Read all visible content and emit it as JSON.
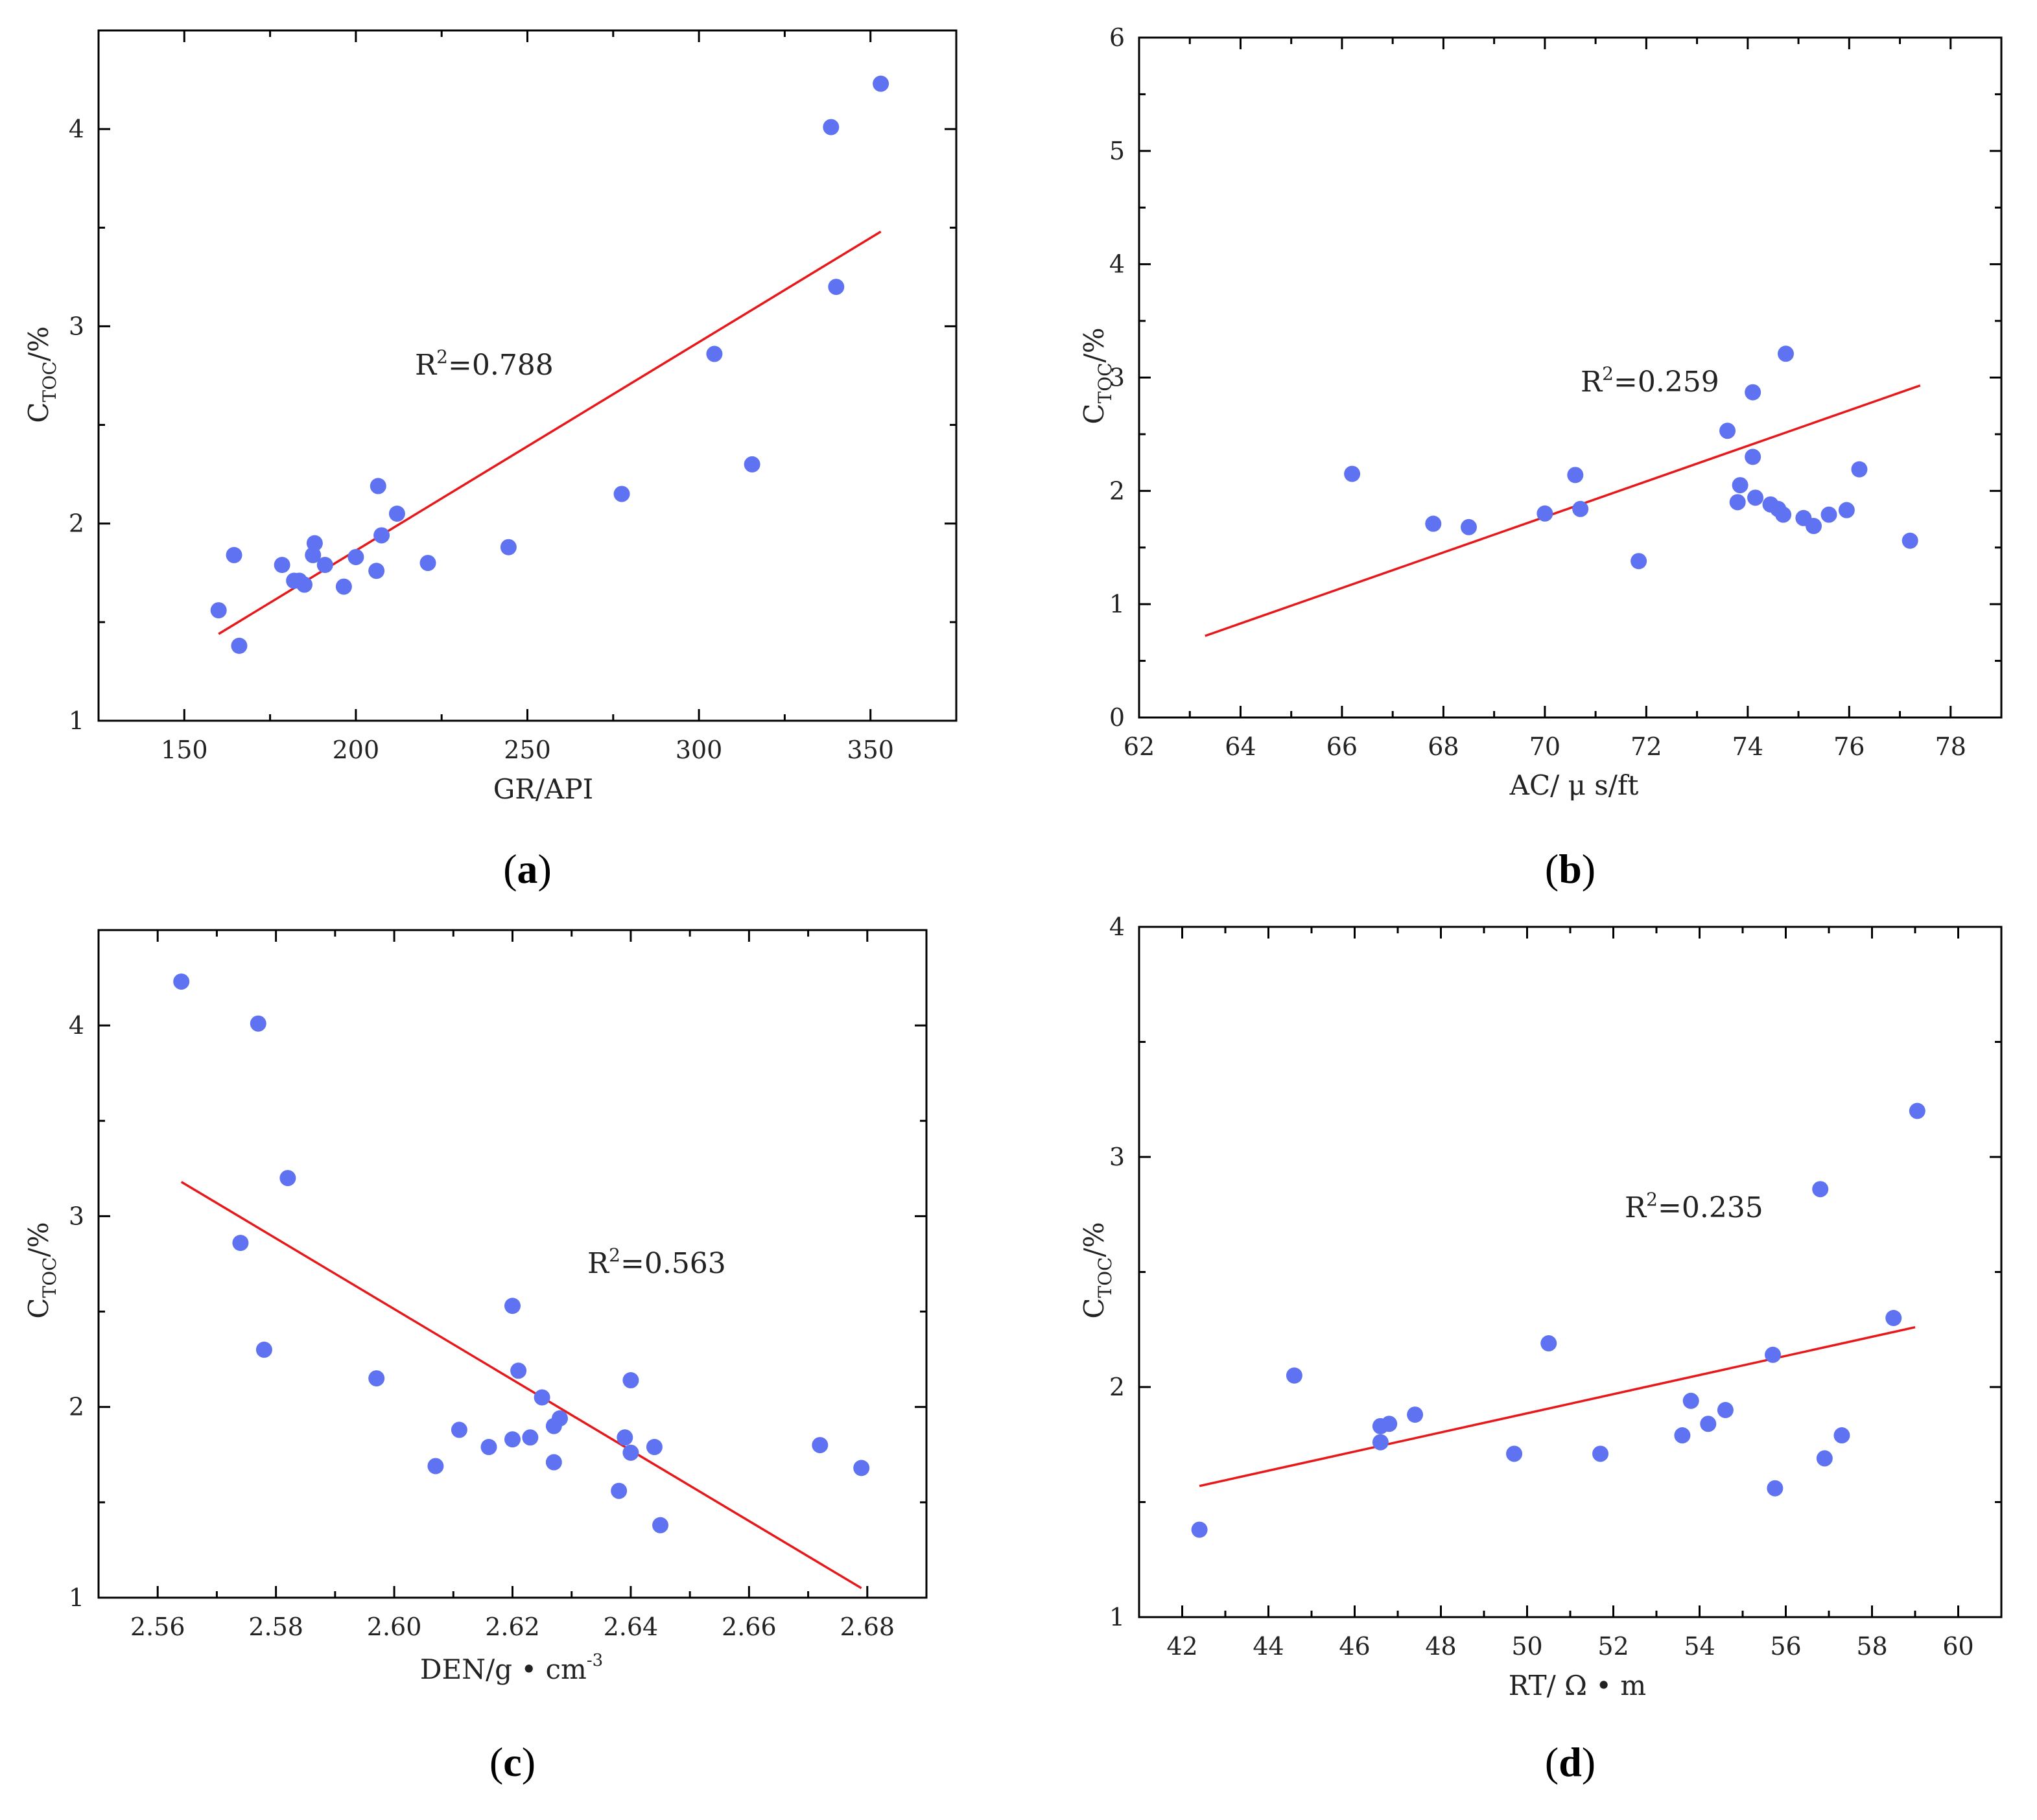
{
  "colors": {
    "points": "#5f73f2",
    "fit_line": "#e8171a",
    "axis": "#000000"
  },
  "chart_data": [
    {
      "id": "a",
      "type": "scatter",
      "panel_label": "a",
      "xlabel": "GR/API",
      "ylabel_main": "C",
      "ylabel_sub": "TOC",
      "ylabel_unit": "/%",
      "xlim": [
        125,
        375
      ],
      "ylim": [
        1,
        4.5
      ],
      "xticks": [
        150,
        200,
        250,
        300,
        350
      ],
      "xtick_labels": [
        "150",
        "200",
        "250",
        "300",
        "350"
      ],
      "yticks": [
        1,
        2,
        3,
        4
      ],
      "ytick_labels": [
        "1",
        "2",
        "3",
        "4"
      ],
      "r2_prefix": "R",
      "r2_sup": "2",
      "r2_value": "=0.788",
      "r2_anchor": [
        125,
        375
      ],
      "fit": {
        "x": [
          160,
          353
        ],
        "y": [
          1.44,
          3.48
        ]
      },
      "points": [
        [
          160,
          1.56
        ],
        [
          164.5,
          1.84
        ],
        [
          166,
          1.38
        ],
        [
          178.5,
          1.79
        ],
        [
          182,
          1.71
        ],
        [
          183.5,
          1.71
        ],
        [
          185,
          1.69
        ],
        [
          187.5,
          1.84
        ],
        [
          188,
          1.9
        ],
        [
          191,
          1.79
        ],
        [
          196.5,
          1.68
        ],
        [
          200,
          1.83
        ],
        [
          206,
          1.76
        ],
        [
          206.5,
          2.19
        ],
        [
          207.5,
          1.94
        ],
        [
          212,
          2.05
        ],
        [
          221,
          1.8
        ],
        [
          244.5,
          1.88
        ],
        [
          277.5,
          2.15
        ],
        [
          304.5,
          2.86
        ],
        [
          315.5,
          2.3
        ],
        [
          338.5,
          4.01
        ],
        [
          340,
          3.2
        ],
        [
          353,
          4.23
        ]
      ]
    },
    {
      "id": "b",
      "type": "scatter",
      "panel_label": "b",
      "xlabel": "AC/ μ s/ft",
      "ylabel_main": "C",
      "ylabel_sub": "TOC",
      "ylabel_unit": "/%",
      "xlim": [
        62,
        79
      ],
      "ylim": [
        0,
        6
      ],
      "xticks": [
        62,
        64,
        66,
        68,
        70,
        72,
        74,
        76,
        78
      ],
      "xtick_labels": [
        "62",
        "64",
        "66",
        "68",
        "70",
        "72",
        "74",
        "76",
        "78"
      ],
      "yticks": [
        0,
        1,
        2,
        3,
        4,
        5,
        6
      ],
      "ytick_labels": [
        "0",
        "1",
        "2",
        "3",
        "4",
        "5",
        "6"
      ],
      "r2_prefix": "R",
      "r2_sup": "2",
      "r2_value": "=0.259",
      "fit": {
        "x": [
          63.3,
          77.4
        ],
        "y": [
          0.72,
          2.93
        ]
      },
      "points": [
        [
          66.2,
          2.15
        ],
        [
          67.8,
          1.71
        ],
        [
          68.5,
          1.68
        ],
        [
          70.0,
          1.8
        ],
        [
          70.6,
          2.14
        ],
        [
          70.7,
          1.84
        ],
        [
          71.85,
          1.38
        ],
        [
          73.6,
          2.53
        ],
        [
          73.8,
          1.9
        ],
        [
          73.85,
          2.05
        ],
        [
          74.1,
          2.87
        ],
        [
          74.1,
          2.3
        ],
        [
          74.15,
          1.94
        ],
        [
          74.45,
          1.88
        ],
        [
          74.6,
          1.84
        ],
        [
          74.7,
          1.79
        ],
        [
          74.75,
          3.21
        ],
        [
          75.1,
          1.76
        ],
        [
          75.3,
          1.69
        ],
        [
          75.6,
          1.79
        ],
        [
          75.95,
          1.83
        ],
        [
          76.2,
          2.19
        ],
        [
          77.2,
          1.56
        ]
      ]
    },
    {
      "id": "c",
      "type": "scatter",
      "panel_label": "c",
      "xlabel": "DEN/g • cm",
      "xlabel_sup": "-3",
      "ylabel_main": "C",
      "ylabel_sub": "TOC",
      "ylabel_unit": "/%",
      "xlim": [
        2.55,
        2.69
      ],
      "ylim": [
        1,
        4.5
      ],
      "xticks": [
        2.56,
        2.58,
        2.6,
        2.62,
        2.64,
        2.66,
        2.68
      ],
      "xtick_labels": [
        "2.56",
        "2.58",
        "2.60",
        "2.62",
        "2.64",
        "2.66",
        "2.68"
      ],
      "yticks": [
        1,
        2,
        3,
        4
      ],
      "ytick_labels": [
        "1",
        "2",
        "3",
        "4"
      ],
      "r2_prefix": "R",
      "r2_sup": "2",
      "r2_value": "=0.563",
      "fit": {
        "x": [
          2.564,
          2.679
        ],
        "y": [
          3.18,
          1.05
        ]
      },
      "points": [
        [
          2.564,
          4.23
        ],
        [
          2.574,
          2.86
        ],
        [
          2.577,
          4.01
        ],
        [
          2.578,
          2.3
        ],
        [
          2.582,
          3.2
        ],
        [
          2.597,
          2.15
        ],
        [
          2.607,
          1.69
        ],
        [
          2.611,
          1.88
        ],
        [
          2.616,
          1.79
        ],
        [
          2.62,
          1.83
        ],
        [
          2.62,
          2.53
        ],
        [
          2.621,
          2.19
        ],
        [
          2.623,
          1.84
        ],
        [
          2.625,
          2.05
        ],
        [
          2.627,
          1.71
        ],
        [
          2.627,
          1.9
        ],
        [
          2.628,
          1.94
        ],
        [
          2.638,
          1.56
        ],
        [
          2.639,
          1.84
        ],
        [
          2.64,
          1.76
        ],
        [
          2.64,
          2.14
        ],
        [
          2.644,
          1.79
        ],
        [
          2.645,
          1.38
        ],
        [
          2.672,
          1.8
        ],
        [
          2.679,
          1.68
        ]
      ]
    },
    {
      "id": "d",
      "type": "scatter",
      "panel_label": "d",
      "xlabel": "RT/ Ω • m",
      "ylabel_main": "C",
      "ylabel_sub": "TOC",
      "ylabel_unit": "/%",
      "xlim": [
        41,
        61
      ],
      "ylim": [
        1,
        4
      ],
      "xticks": [
        42,
        44,
        46,
        48,
        50,
        52,
        54,
        56,
        58,
        60
      ],
      "xtick_labels": [
        "42",
        "44",
        "46",
        "48",
        "50",
        "52",
        "54",
        "56",
        "58",
        "60"
      ],
      "yticks": [
        1,
        2,
        3,
        4
      ],
      "ytick_labels": [
        "1",
        "2",
        "3",
        "4"
      ],
      "r2_prefix": "R",
      "r2_sup": "2",
      "r2_value": "=0.235",
      "fit": {
        "x": [
          42.4,
          59.0
        ],
        "y": [
          1.57,
          2.26
        ]
      },
      "points": [
        [
          42.4,
          1.38
        ],
        [
          44.6,
          2.05
        ],
        [
          46.6,
          1.76
        ],
        [
          46.6,
          1.83
        ],
        [
          46.8,
          1.84
        ],
        [
          47.4,
          1.88
        ],
        [
          49.7,
          1.71
        ],
        [
          50.5,
          2.19
        ],
        [
          51.7,
          1.71
        ],
        [
          53.6,
          1.79
        ],
        [
          53.8,
          1.94
        ],
        [
          54.2,
          1.84
        ],
        [
          54.6,
          1.9
        ],
        [
          55.7,
          2.14
        ],
        [
          55.75,
          1.56
        ],
        [
          56.8,
          2.86
        ],
        [
          56.9,
          1.69
        ],
        [
          57.3,
          1.79
        ],
        [
          58.5,
          2.3
        ],
        [
          59.05,
          3.2
        ]
      ]
    }
  ]
}
